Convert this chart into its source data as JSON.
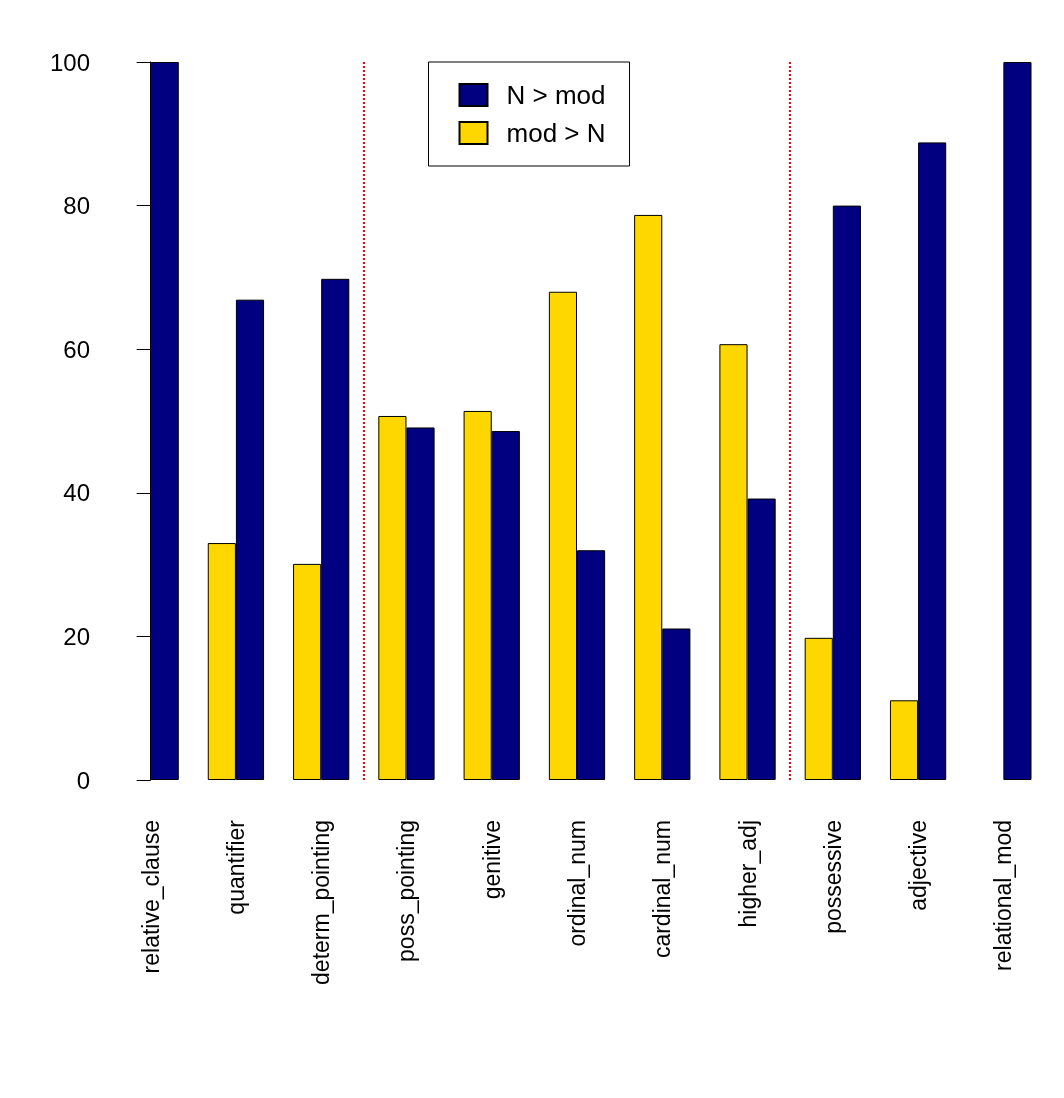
{
  "chart_data": {
    "type": "bar",
    "categories": [
      "relative_clause",
      "quantifier",
      "determ_pointing",
      "poss_pointing",
      "genitive",
      "ordinal_num",
      "cardinal_num",
      "higher_adj",
      "possessive",
      "adjective",
      "relational_mod"
    ],
    "series": [
      {
        "name": "mod > N",
        "color": "#ffd700",
        "values": [
          0,
          33,
          30.1,
          50.7,
          51.4,
          68,
          78.7,
          60.7,
          19.8,
          11.1,
          0
        ]
      },
      {
        "name": "N > mod",
        "color": "#000080",
        "values": [
          100,
          66.9,
          69.8,
          49.1,
          48.6,
          32,
          21.1,
          39.2,
          80,
          88.8,
          100
        ]
      }
    ],
    "ylim": [
      0,
      100
    ],
    "yticks": [
      0,
      20,
      40,
      60,
      80,
      100
    ],
    "grid": false,
    "legend": "top"
  }
}
